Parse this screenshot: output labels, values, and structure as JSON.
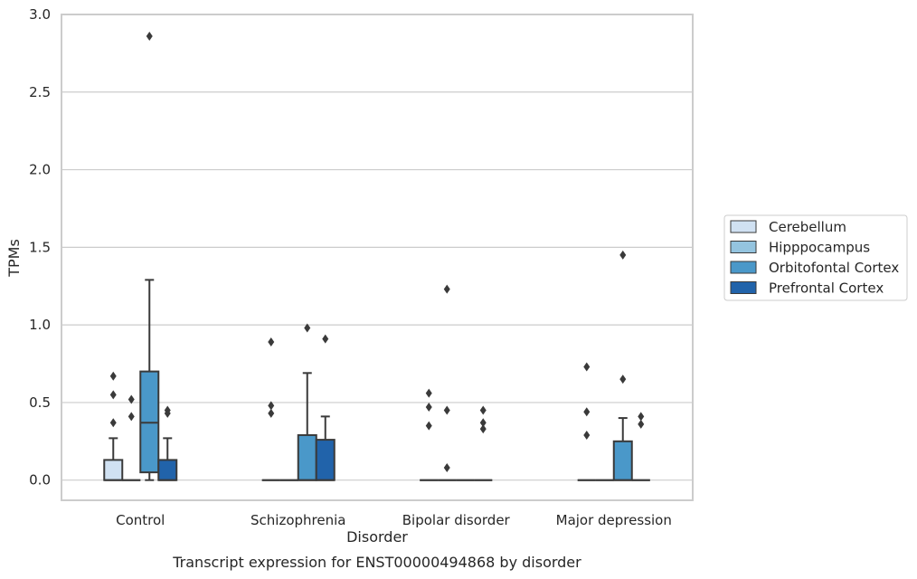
{
  "chart_data": {
    "type": "box",
    "title": "",
    "caption": "Transcript expression for ENST00000494868 by disorder",
    "xlabel": "Disorder",
    "ylabel": "TPMs",
    "ylim": [
      -0.13,
      3.0
    ],
    "yticks": [
      "0.0",
      "0.5",
      "1.0",
      "1.5",
      "2.0",
      "2.5",
      "3.0"
    ],
    "grid": "horizontal",
    "legend_position": "right",
    "categories": [
      "Control",
      "Schizophrenia",
      "Bipolar disorder",
      "Major depression"
    ],
    "series": [
      {
        "name": "Cerebellum",
        "color": "#d0e1f2",
        "boxes": [
          {
            "q1": 0,
            "median": 0,
            "q3": 0.13,
            "whisker_low": 0,
            "whisker_high": 0.27,
            "outliers": [
              0.37,
              0.55,
              0.67
            ]
          },
          {
            "q1": 0,
            "median": 0,
            "q3": 0,
            "whisker_low": 0,
            "whisker_high": 0,
            "outliers": [
              0.43,
              0.48,
              0.89
            ]
          },
          {
            "q1": 0,
            "median": 0,
            "q3": 0,
            "whisker_low": 0,
            "whisker_high": 0,
            "outliers": [
              0.35,
              0.47,
              0.56
            ]
          },
          {
            "q1": 0,
            "median": 0,
            "q3": 0,
            "whisker_low": 0,
            "whisker_high": 0,
            "outliers": [
              0.29,
              0.44,
              0.73
            ]
          }
        ]
      },
      {
        "name": "Hipppocampus",
        "color": "#94c4df",
        "boxes": [
          {
            "q1": 0,
            "median": 0,
            "q3": 0,
            "whisker_low": 0,
            "whisker_high": 0,
            "outliers": [
              0.41,
              0.52
            ]
          },
          {
            "q1": 0,
            "median": 0,
            "q3": 0,
            "whisker_low": 0,
            "whisker_high": 0,
            "outliers": []
          },
          {
            "q1": 0,
            "median": 0,
            "q3": 0,
            "whisker_low": 0,
            "whisker_high": 0,
            "outliers": [
              0.08,
              0.45,
              1.23
            ]
          },
          {
            "q1": 0,
            "median": 0,
            "q3": 0,
            "whisker_low": 0,
            "whisker_high": 0,
            "outliers": []
          }
        ]
      },
      {
        "name": "Orbitofontal Cortex",
        "color": "#4a98c9",
        "boxes": [
          {
            "q1": 0.05,
            "median": 0.37,
            "q3": 0.7,
            "whisker_low": 0,
            "whisker_high": 1.29,
            "outliers": [
              2.86
            ]
          },
          {
            "q1": 0,
            "median": 0,
            "q3": 0.29,
            "whisker_low": 0,
            "whisker_high": 0.69,
            "outliers": [
              0.98
            ]
          },
          {
            "q1": 0,
            "median": 0,
            "q3": 0,
            "whisker_low": 0,
            "whisker_high": 0,
            "outliers": []
          },
          {
            "q1": 0,
            "median": 0,
            "q3": 0.25,
            "whisker_low": 0,
            "whisker_high": 0.4,
            "outliers": [
              0.65,
              1.45
            ]
          }
        ]
      },
      {
        "name": "Prefrontal Cortex",
        "color": "#2163aa",
        "boxes": [
          {
            "q1": 0,
            "median": 0,
            "q3": 0.13,
            "whisker_low": 0,
            "whisker_high": 0.27,
            "outliers": [
              0.43,
              0.45
            ]
          },
          {
            "q1": 0,
            "median": 0,
            "q3": 0.26,
            "whisker_low": 0,
            "whisker_high": 0.41,
            "outliers": [
              0.91
            ]
          },
          {
            "q1": 0,
            "median": 0,
            "q3": 0,
            "whisker_low": 0,
            "whisker_high": 0,
            "outliers": [
              0.33,
              0.37,
              0.45
            ]
          },
          {
            "q1": 0,
            "median": 0,
            "q3": 0,
            "whisker_low": 0,
            "whisker_high": 0,
            "outliers": [
              0.36,
              0.41
            ]
          }
        ]
      }
    ]
  }
}
